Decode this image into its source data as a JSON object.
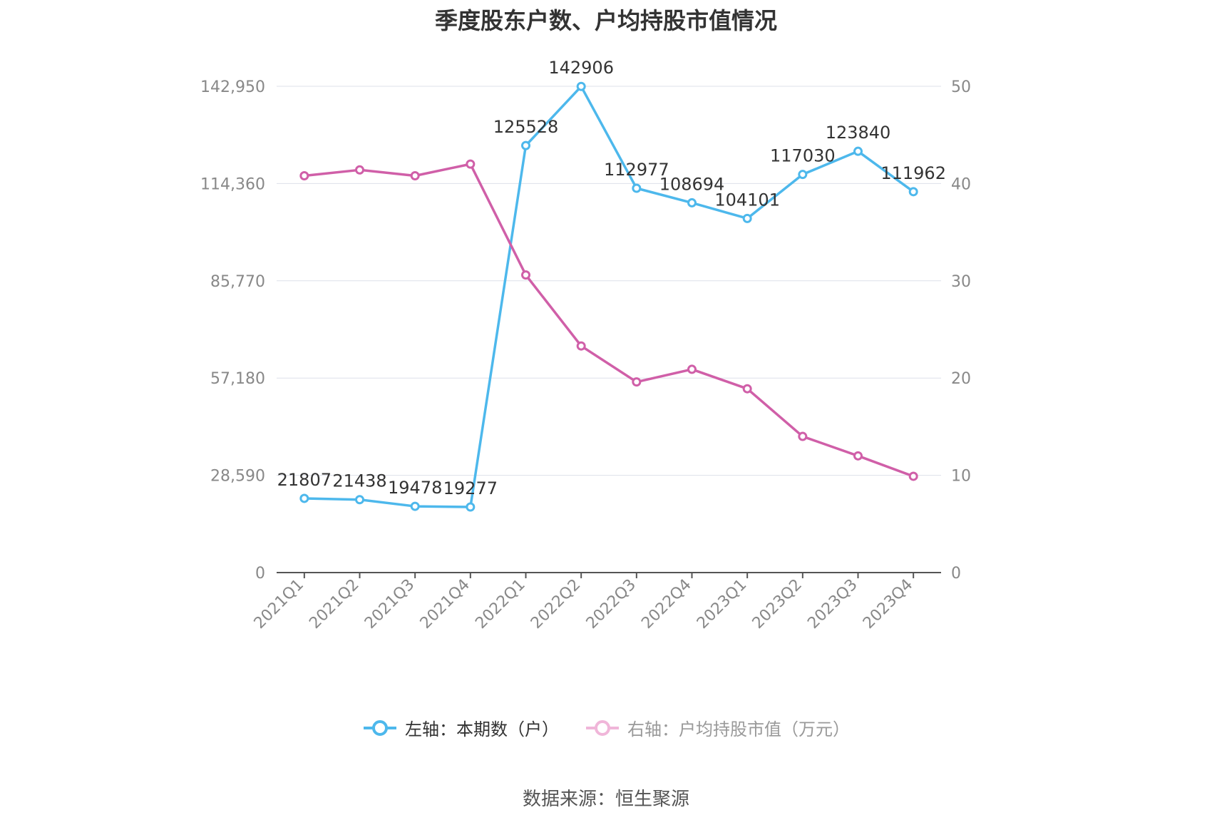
{
  "title": "季度股东户数、户均持股市值情况",
  "source": "数据来源：恒生聚源",
  "colors": {
    "left_series": "#4db8ec",
    "right_series": "#d05fa8",
    "grid": "#dde0ea",
    "axis": "#555555",
    "tick": "#888888"
  },
  "chart_data": {
    "type": "line",
    "categories": [
      "2021Q1",
      "2021Q2",
      "2021Q3",
      "2021Q4",
      "2022Q1",
      "2022Q2",
      "2022Q3",
      "2022Q4",
      "2023Q1",
      "2023Q2",
      "2023Q3",
      "2023Q4"
    ],
    "series": [
      {
        "name": "左轴：本期数（户）",
        "axis": "left",
        "color": "#4db8ec",
        "values": [
          21807,
          21438,
          19478,
          19277,
          125528,
          142906,
          112977,
          108694,
          104101,
          117030,
          123840,
          111962
        ],
        "labels": [
          "21807",
          "21438",
          "19478",
          "19277",
          "125528",
          "142906",
          "112977",
          "108694",
          "104101",
          "117030",
          "123840",
          "111962"
        ]
      },
      {
        "name": "右轴：户均持股市值（万元）",
        "axis": "right",
        "color": "#d05fa8",
        "values": [
          40.8,
          41.4,
          40.8,
          42.0,
          30.6,
          23.3,
          19.6,
          20.9,
          18.9,
          14.0,
          12.0,
          9.9
        ]
      }
    ],
    "y_left": {
      "min": 0,
      "max": 142950,
      "ticks": [
        "0",
        "28,590",
        "57,180",
        "85,770",
        "114,360",
        "142,950"
      ]
    },
    "y_right": {
      "min": 0,
      "max": 50,
      "ticks": [
        "0",
        "10",
        "20",
        "30",
        "40",
        "50"
      ]
    },
    "grid": true,
    "legend_position": "bottom"
  }
}
